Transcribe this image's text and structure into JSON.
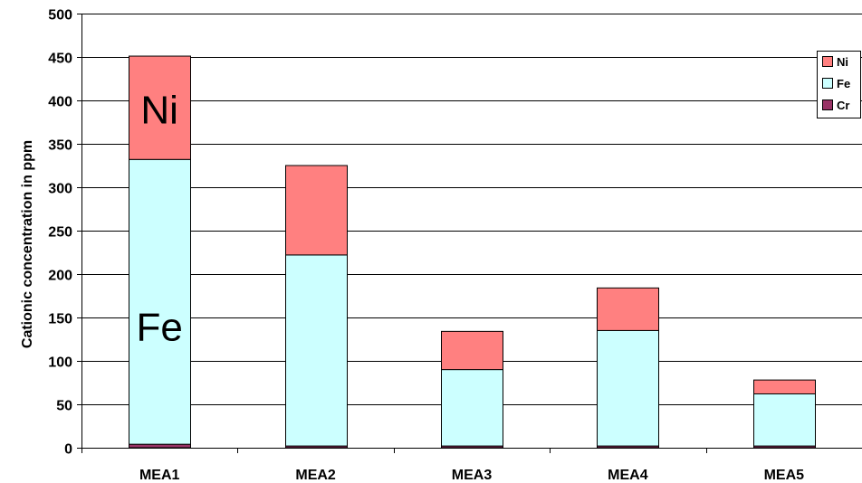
{
  "chart_data": {
    "type": "bar",
    "stacked": true,
    "title": "",
    "xlabel": "",
    "ylabel": "Cationic concentration in ppm",
    "ylim": [
      0,
      500
    ],
    "yticks": [
      0,
      50,
      100,
      150,
      200,
      250,
      300,
      350,
      400,
      450,
      500
    ],
    "grid": "horizontal",
    "legend_position": "right",
    "categories": [
      "MEA1",
      "MEA2",
      "MEA3",
      "MEA4",
      "MEA5"
    ],
    "series": [
      {
        "name": "Cr",
        "color": "#993366",
        "values": [
          4,
          2,
          2,
          2,
          2
        ]
      },
      {
        "name": "Fe",
        "color": "#CCFFFF",
        "values": [
          328,
          220,
          88,
          133,
          60
        ]
      },
      {
        "name": "Ni",
        "color": "#FF8080",
        "values": [
          119,
          103,
          44,
          49,
          16
        ]
      }
    ],
    "legend_order": [
      "Ni",
      "Fe",
      "Cr"
    ],
    "annotations": [
      {
        "text": "Ni",
        "category": "MEA1",
        "y": 390
      },
      {
        "text": "Fe",
        "category": "MEA1",
        "y": 140
      }
    ]
  }
}
